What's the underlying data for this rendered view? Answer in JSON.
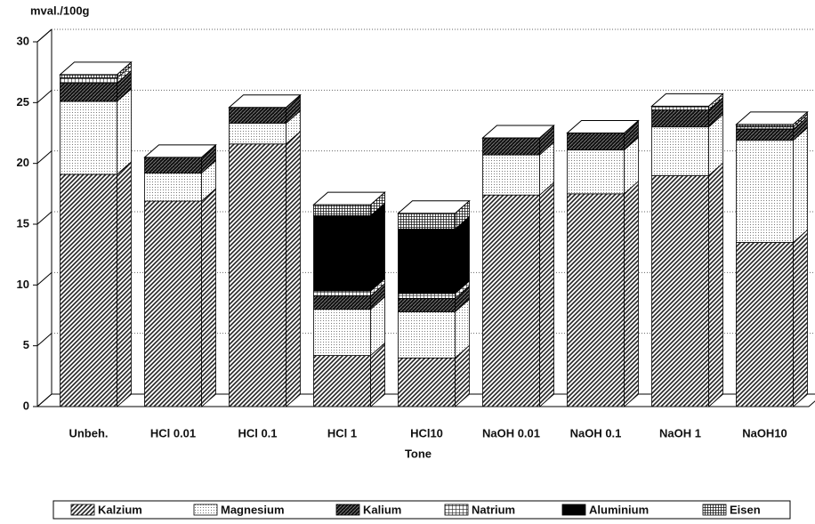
{
  "chart_data": {
    "type": "bar3d-stacked",
    "title": "mval./100g",
    "x_label": "Tone",
    "categories": [
      "Unbeh.",
      "HCl 0.01",
      "HCl 0.1",
      "HCl 1",
      "HCl10",
      "NaOH  0.01",
      "NaOH 0.1",
      "NaOH 1",
      "NaOH10"
    ],
    "series": [
      {
        "name": "Kalzium",
        "color": "#777777",
        "values": [
          19.1,
          16.9,
          21.6,
          4.2,
          4.0,
          17.4,
          17.5,
          19.0,
          13.5
        ]
      },
      {
        "name": "Magnesium",
        "color": "#e6e6e6",
        "values": [
          6.0,
          2.3,
          1.7,
          3.8,
          3.8,
          3.3,
          3.6,
          4.0,
          8.4
        ]
      },
      {
        "name": "Kalium",
        "color": "#333333",
        "values": [
          1.5,
          1.3,
          1.3,
          1.1,
          1.1,
          1.4,
          1.4,
          1.4,
          0.9
        ]
      },
      {
        "name": "Natrium",
        "color": "#bbbbbb",
        "values": [
          0.4,
          0,
          0,
          0.4,
          0.4,
          0,
          0,
          0.3,
          0.2
        ]
      },
      {
        "name": "Aluminium",
        "color": "#000000",
        "values": [
          0,
          0,
          0,
          6.2,
          5.3,
          0,
          0,
          0,
          0
        ]
      },
      {
        "name": "Eisen",
        "color": "#999999",
        "values": [
          0.3,
          0,
          0,
          0.9,
          1.3,
          0,
          0,
          0,
          0.2
        ]
      }
    ],
    "ylim": [
      0,
      30
    ],
    "yticks": [
      0,
      5,
      10,
      15,
      20,
      25,
      30
    ],
    "grid": true,
    "legend": "bottom"
  }
}
